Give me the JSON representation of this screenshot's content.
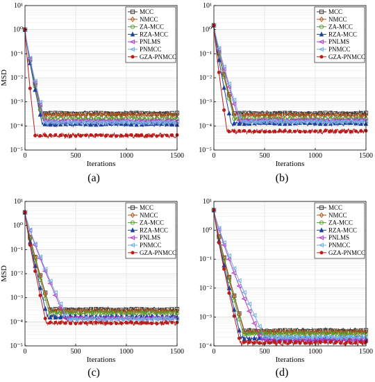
{
  "chart_data": [
    {
      "panel": "(a)",
      "type": "line",
      "xlabel": "Iterations",
      "ylabel": "MSD",
      "xlim": [
        0,
        1500
      ],
      "ylim_exp": [
        -5,
        1
      ],
      "yscale": "log",
      "x_ticks": [
        "0",
        "500",
        "1000",
        "1500"
      ],
      "grid": true,
      "legend": "top-right",
      "series": [
        {
          "name": "MCC",
          "color": "#3a3a3a",
          "marker": "square",
          "start": 1.0,
          "steady": 0.00033,
          "knee": 170
        },
        {
          "name": "NMCC",
          "color": "#b0541a",
          "marker": "diamond",
          "start": 1.0,
          "steady": 0.00029,
          "knee": 170
        },
        {
          "name": "ZA-MCC",
          "color": "#5c9c2e",
          "marker": "circle",
          "start": 1.0,
          "steady": 0.0002,
          "knee": 170
        },
        {
          "name": "RZA-MCC",
          "color": "#1f3f9a",
          "marker": "triangle",
          "start": 1.0,
          "steady": 0.00012,
          "knee": 170
        },
        {
          "name": "PNLMS",
          "color": "#b43cc8",
          "marker": "tri-left",
          "start": 1.0,
          "steady": 0.00016,
          "knee": 190
        },
        {
          "name": "PNMCC",
          "color": "#74aee0",
          "marker": "tri-left",
          "start": 1.0,
          "steady": 0.00014,
          "knee": 200
        },
        {
          "name": "GZA-PNMCC",
          "color": "#b81c1c",
          "marker": "dot",
          "start": 1.0,
          "steady": 4e-05,
          "knee": 100
        }
      ]
    },
    {
      "panel": "(b)",
      "type": "line",
      "xlabel": "Iterations",
      "ylabel": "",
      "xlim": [
        0,
        1500
      ],
      "ylim_exp": [
        -5,
        1
      ],
      "yscale": "log",
      "x_ticks": [
        "0",
        "500",
        "1000",
        "1500"
      ],
      "grid": true,
      "legend": "top-right",
      "series": [
        {
          "name": "MCC",
          "color": "#3a3a3a",
          "marker": "square",
          "start": 1.5,
          "steady": 0.00033,
          "knee": 200
        },
        {
          "name": "NMCC",
          "color": "#b0541a",
          "marker": "diamond",
          "start": 1.5,
          "steady": 0.00028,
          "knee": 200
        },
        {
          "name": "ZA-MCC",
          "color": "#5c9c2e",
          "marker": "circle",
          "start": 1.5,
          "steady": 0.0002,
          "knee": 200
        },
        {
          "name": "RZA-MCC",
          "color": "#1f3f9a",
          "marker": "triangle",
          "start": 1.5,
          "steady": 0.00013,
          "knee": 170
        },
        {
          "name": "PNLMS",
          "color": "#b43cc8",
          "marker": "tri-left",
          "start": 1.5,
          "steady": 0.00017,
          "knee": 250
        },
        {
          "name": "PNMCC",
          "color": "#74aee0",
          "marker": "tri-left",
          "start": 1.5,
          "steady": 0.00015,
          "knee": 270
        },
        {
          "name": "GZA-PNMCC",
          "color": "#b81c1c",
          "marker": "dot",
          "start": 1.5,
          "steady": 6e-05,
          "knee": 130
        }
      ]
    },
    {
      "panel": "(c)",
      "type": "line",
      "xlabel": "Iterations",
      "ylabel": "MSD",
      "xlim": [
        0,
        1500
      ],
      "ylim_exp": [
        -5,
        1
      ],
      "yscale": "log",
      "x_ticks": [
        "0",
        "500",
        "1000",
        "1500"
      ],
      "grid": true,
      "legend": "top-right",
      "series": [
        {
          "name": "MCC",
          "color": "#3a3a3a",
          "marker": "square",
          "start": 3.5,
          "steady": 0.00032,
          "knee": 250
        },
        {
          "name": "NMCC",
          "color": "#b0541a",
          "marker": "diamond",
          "start": 3.5,
          "steady": 0.00028,
          "knee": 250
        },
        {
          "name": "ZA-MCC",
          "color": "#5c9c2e",
          "marker": "circle",
          "start": 3.5,
          "steady": 0.00023,
          "knee": 240
        },
        {
          "name": "RZA-MCC",
          "color": "#1f3f9a",
          "marker": "triangle",
          "start": 3.5,
          "steady": 0.00016,
          "knee": 220
        },
        {
          "name": "PNLMS",
          "color": "#b43cc8",
          "marker": "tri-left",
          "start": 3.5,
          "steady": 0.00014,
          "knee": 400
        },
        {
          "name": "PNMCC",
          "color": "#74aee0",
          "marker": "tri-left",
          "start": 3.5,
          "steady": 0.00013,
          "knee": 420
        },
        {
          "name": "GZA-PNMCC",
          "color": "#b81c1c",
          "marker": "dot",
          "start": 3.5,
          "steady": 9e-05,
          "knee": 210
        }
      ]
    },
    {
      "panel": "(d)",
      "type": "line",
      "xlabel": "Iterations",
      "ylabel": "",
      "xlim": [
        0,
        1500
      ],
      "ylim_exp": [
        -4,
        1
      ],
      "yscale": "log",
      "x_ticks": [
        "0",
        "500",
        "1000",
        "1500"
      ],
      "grid": true,
      "legend": "top-right",
      "series": [
        {
          "name": "MCC",
          "color": "#3a3a3a",
          "marker": "square",
          "start": 5.0,
          "steady": 0.00033,
          "knee": 300
        },
        {
          "name": "NMCC",
          "color": "#b0541a",
          "marker": "diamond",
          "start": 5.0,
          "steady": 0.0003,
          "knee": 300
        },
        {
          "name": "ZA-MCC",
          "color": "#5c9c2e",
          "marker": "circle",
          "start": 5.0,
          "steady": 0.00026,
          "knee": 290
        },
        {
          "name": "RZA-MCC",
          "color": "#1f3f9a",
          "marker": "triangle",
          "start": 5.0,
          "steady": 0.00018,
          "knee": 270
        },
        {
          "name": "PNLMS",
          "color": "#b43cc8",
          "marker": "tri-left",
          "start": 5.0,
          "steady": 0.00016,
          "knee": 470
        },
        {
          "name": "PNMCC",
          "color": "#74aee0",
          "marker": "tri-left",
          "start": 5.0,
          "steady": 0.0002,
          "knee": 500
        },
        {
          "name": "GZA-PNMCC",
          "color": "#b81c1c",
          "marker": "dot",
          "start": 5.0,
          "steady": 0.00013,
          "knee": 260
        }
      ]
    }
  ]
}
